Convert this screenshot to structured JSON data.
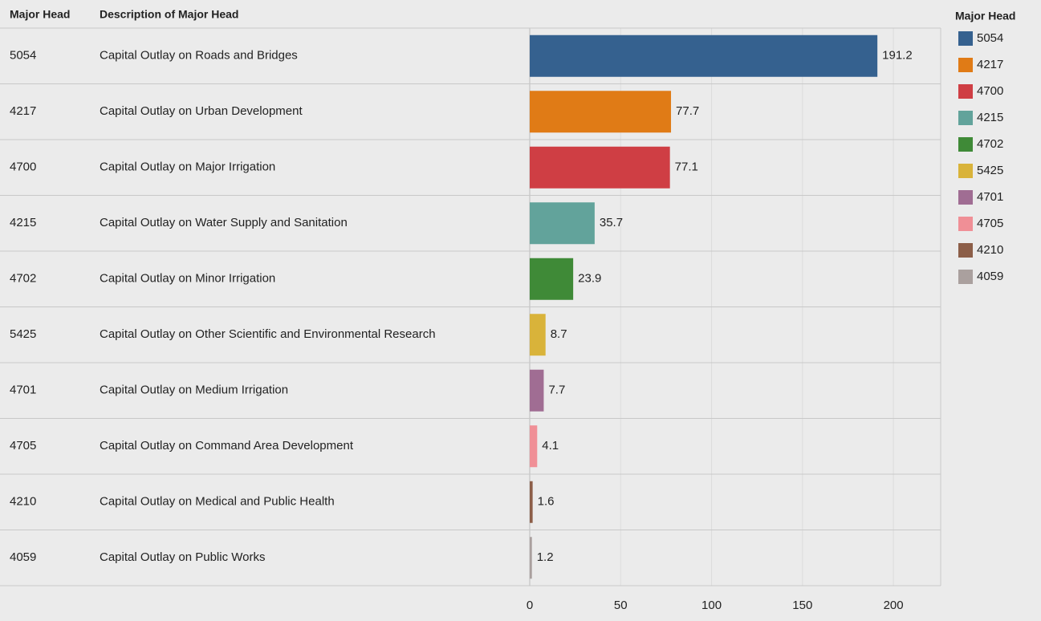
{
  "chart_data": {
    "type": "bar",
    "orientation": "horizontal",
    "column_headers": [
      "Major Head",
      "Description of Major Head"
    ],
    "categories": [
      "5054",
      "4217",
      "4700",
      "4215",
      "4702",
      "5425",
      "4701",
      "4705",
      "4210",
      "4059"
    ],
    "descriptions": [
      "Capital Outlay on Roads and Bridges",
      "Capital Outlay on Urban Development",
      "Capital Outlay on Major Irrigation",
      "Capital Outlay on Water Supply and Sanitation",
      "Capital Outlay on Minor Irrigation",
      "Capital Outlay on Other Scientific and Environmental Research",
      "Capital Outlay on Medium Irrigation",
      "Capital Outlay on Command Area Development",
      "Capital Outlay on Medical and Public Health",
      "Capital Outlay on Public Works"
    ],
    "values": [
      191.2,
      77.7,
      77.1,
      35.7,
      23.9,
      8.7,
      7.7,
      4.1,
      1.6,
      1.2
    ],
    "colors": [
      "#35618f",
      "#e07b16",
      "#cf3e44",
      "#62a39b",
      "#3f8a37",
      "#d9b33a",
      "#a06d93",
      "#f08f96",
      "#8c5e48",
      "#aaa09e"
    ],
    "xlim": [
      0,
      226
    ],
    "xticks": [
      0,
      50,
      100,
      150,
      200
    ],
    "grid": true,
    "legend": {
      "title": "Major Head",
      "position": "right"
    }
  }
}
